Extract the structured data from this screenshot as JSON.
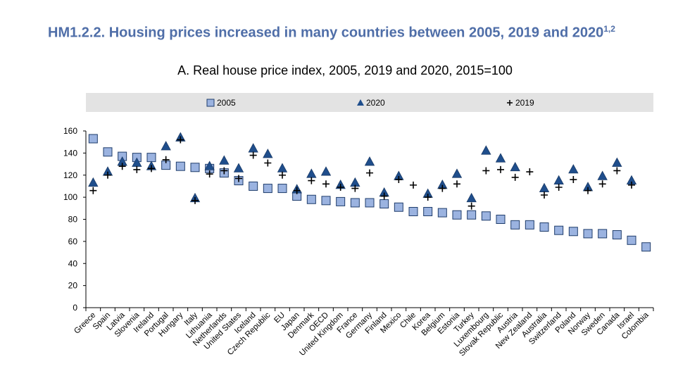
{
  "figure_title": "HM1.2.2. Housing prices increased in many countries between 2005, 2019 and 2020",
  "figure_title_superscript": "1,2",
  "chart_data": {
    "type": "scatter",
    "title": "A. Real house price index, 2005, 2019 and 2020, 2015=100",
    "xlabel": "",
    "ylabel": "",
    "ylim": [
      0,
      160
    ],
    "yticks": [
      0,
      20,
      40,
      60,
      80,
      100,
      120,
      140,
      160
    ],
    "grid": false,
    "legend_placement": "top",
    "categories": [
      "Greece",
      "Spain",
      "Latvia",
      "Slovenia",
      "Ireland",
      "Portugal",
      "Hungary",
      "Italy",
      "Lithuania",
      "Netherlands",
      "United States",
      "Iceland",
      "Czech Republic",
      "EU",
      "Japan",
      "Denmark",
      "OECD",
      "United Kingdom",
      "France",
      "Germany",
      "Finland",
      "Mexico",
      "Chile",
      "Korea",
      "Belgium",
      "Estonia",
      "Turkey",
      "Luxembourg",
      "Slovak Republic",
      "Austria",
      "New Zealand",
      "Australia",
      "Switzerland",
      "Poland",
      "Norway",
      "Sweden",
      "Canada",
      "Israel",
      "Colombia"
    ],
    "series": [
      {
        "name": "2005",
        "marker": "square",
        "color": "#9bb3e0",
        "values": [
          153,
          141,
          137,
          136,
          136,
          129,
          128,
          127,
          126,
          122,
          115,
          110,
          108,
          108,
          101,
          98,
          97,
          96,
          95,
          95,
          94,
          91,
          87,
          87,
          86,
          84,
          84,
          83,
          80,
          75,
          75,
          73,
          70,
          69,
          67,
          67,
          66,
          61,
          55
        ]
      },
      {
        "name": "2020",
        "marker": "triangle",
        "color": "#1f4e8c",
        "values": [
          113,
          123,
          132,
          131,
          128,
          146,
          154,
          99,
          128,
          133,
          126,
          144,
          139,
          126,
          107,
          121,
          123,
          111,
          113,
          132,
          104,
          119,
          null,
          103,
          111,
          121,
          99,
          142,
          135,
          127,
          null,
          108,
          115,
          125,
          109,
          119,
          131,
          115,
          null
        ]
      },
      {
        "name": "2019",
        "marker": "plus",
        "color": "#000000",
        "values": [
          106,
          120,
          128,
          125,
          126,
          134,
          152,
          97,
          121,
          124,
          117,
          138,
          131,
          120,
          106,
          115,
          112,
          109,
          108,
          122,
          101,
          116,
          111,
          100,
          108,
          112,
          92,
          124,
          125,
          118,
          123,
          102,
          109,
          116,
          106,
          112,
          124,
          111,
          null
        ]
      }
    ]
  }
}
